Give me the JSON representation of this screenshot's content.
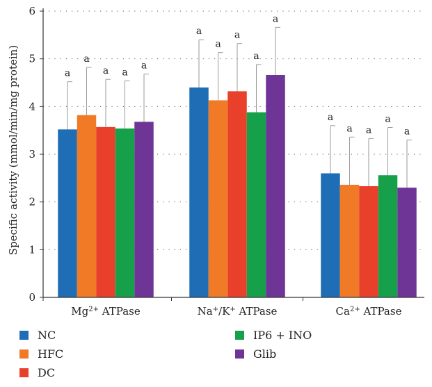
{
  "chart_data": {
    "type": "bar",
    "ylabel": "Specific activity (mmol/min/mg protein)",
    "ylim": [
      0,
      6
    ],
    "yticks": [
      "0",
      "1",
      "2",
      "3",
      "4",
      "5",
      "6"
    ],
    "grid": "dotted horizontal",
    "legend_placement": "bottom",
    "categories": [
      {
        "base": "Mg",
        "sup": "2+",
        "rest": " ATPase"
      },
      {
        "base": "Na",
        "sup": "+",
        "mid": "/K",
        "sup2": "+",
        "rest": " ATPase"
      },
      {
        "base": "Ca",
        "sup": "2+",
        "rest": " ATPase"
      }
    ],
    "series": [
      {
        "name": "NC",
        "color": "#1f6db5",
        "values": [
          3.52,
          4.4,
          2.6
        ],
        "errors": [
          1.0,
          1.0,
          1.0
        ],
        "labels": [
          "a",
          "a",
          "a"
        ]
      },
      {
        "name": "HFC",
        "color": "#f07a25",
        "values": [
          3.82,
          4.13,
          2.36
        ],
        "errors": [
          1.0,
          1.0,
          1.0
        ],
        "labels": [
          "a",
          "a",
          "a"
        ]
      },
      {
        "name": "DC",
        "color": "#e8402a",
        "values": [
          3.57,
          4.32,
          2.33
        ],
        "errors": [
          1.0,
          1.0,
          1.0
        ],
        "labels": [
          "a",
          "a",
          "a"
        ]
      },
      {
        "name": "IP6 + INO",
        "color": "#16a04a",
        "values": [
          3.54,
          3.88,
          2.56
        ],
        "errors": [
          1.0,
          1.0,
          1.0
        ],
        "labels": [
          "a",
          "a",
          "a"
        ]
      },
      {
        "name": "Glib",
        "color": "#6f3596",
        "values": [
          3.68,
          4.66,
          2.3
        ],
        "errors": [
          1.0,
          1.0,
          1.0
        ],
        "labels": [
          "a",
          "a",
          "a"
        ]
      }
    ]
  }
}
